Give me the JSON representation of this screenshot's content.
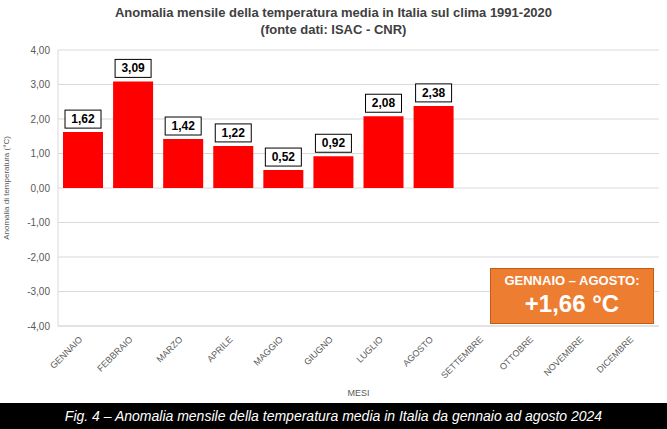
{
  "chart_data": {
    "type": "bar",
    "title": "Anomalia mensile della temperatura media in Italia sul clima 1991-2020",
    "subtitle": "(fonte dati: ISAC - CNR)",
    "y_label": "Anomalia di temperatura (°C)",
    "x_label": "MESI",
    "categories": [
      "GENNAIO",
      "FEBBRAIO",
      "MARZO",
      "APRILE",
      "MAGGIO",
      "GIUGNO",
      "LUGLIO",
      "AGOSTO",
      "SETTEMBRE",
      "OTTOBRE",
      "NOVEMBRE",
      "DICEMBRE"
    ],
    "values": [
      1.62,
      3.09,
      1.42,
      1.22,
      0.52,
      0.92,
      2.08,
      2.38,
      null,
      null,
      null,
      null
    ],
    "value_labels": [
      "1,62",
      "3,09",
      "1,42",
      "1,22",
      "0,52",
      "0,92",
      "2,08",
      "2,38",
      null,
      null,
      null,
      null
    ],
    "color": "#ff0000",
    "ylim": [
      -4,
      4
    ],
    "yticks": [
      {
        "value": -4,
        "label": "-4,00"
      },
      {
        "value": -3,
        "label": "-3,00"
      },
      {
        "value": -2,
        "label": "-2,00"
      },
      {
        "value": -1,
        "label": "-1,00"
      },
      {
        "value": 0,
        "label": "0,00"
      },
      {
        "value": 1,
        "label": "1,00"
      },
      {
        "value": 2,
        "label": "2,00"
      },
      {
        "value": 3,
        "label": "3,00"
      },
      {
        "value": 4,
        "label": "4,00"
      }
    ],
    "grid": true,
    "data_labels": true,
    "annotations": [
      "GENNAIO – AGOSTO:",
      "+1,66 °C"
    ],
    "caption": "Fig. 4 – Anomalia mensile della temperatura media in Italia da gennaio ad agosto 2024"
  }
}
